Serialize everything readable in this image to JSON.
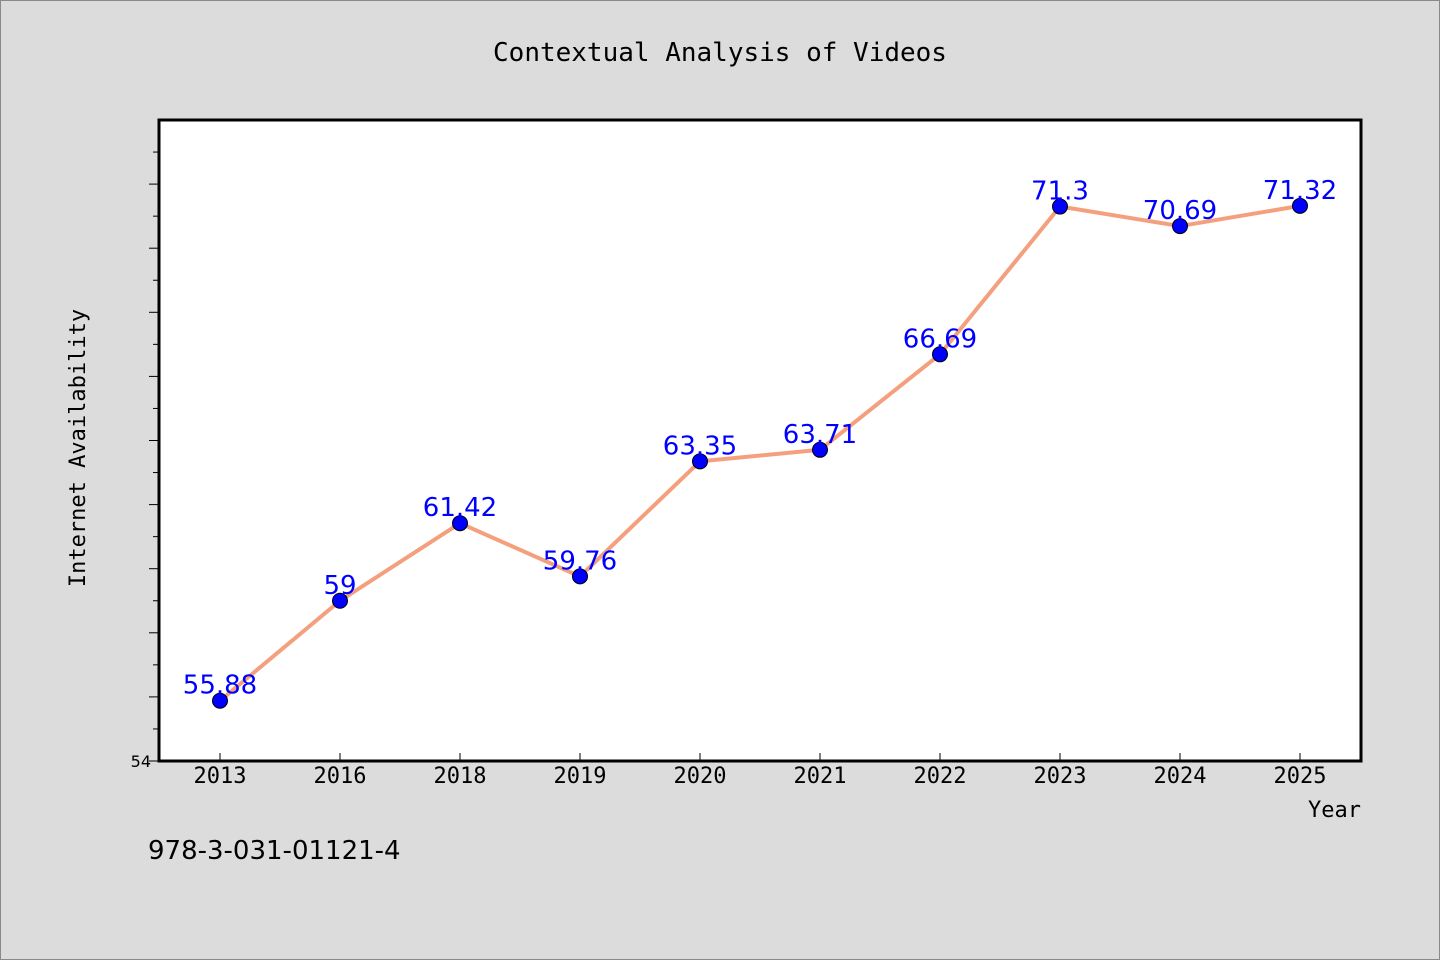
{
  "chart_data": {
    "type": "line",
    "title": "Contextual Analysis of Videos",
    "xlabel": "Year",
    "ylabel": "Internet Availability",
    "categories": [
      "2013",
      "2016",
      "2018",
      "2019",
      "2020",
      "2021",
      "2022",
      "2023",
      "2024",
      "2025"
    ],
    "series": [
      {
        "values": [
          55.88,
          59,
          61.42,
          59.76,
          63.35,
          63.71,
          66.69,
          71.3,
          70.69,
          71.32
        ],
        "labels": [
          "55.88",
          "59",
          "61.42",
          "59.76",
          "63.35",
          "63.71",
          "66.69",
          "71.3",
          "70.69",
          "71.32"
        ]
      }
    ],
    "ylim": [
      54,
      74
    ],
    "y_tick_labels": [
      "54"
    ],
    "grid": false,
    "colors": {
      "line": "#f4a07e",
      "marker": "#0000ff",
      "label": "#0000ff"
    }
  },
  "footer": {
    "isbn": "978-3-031-01121-4"
  }
}
